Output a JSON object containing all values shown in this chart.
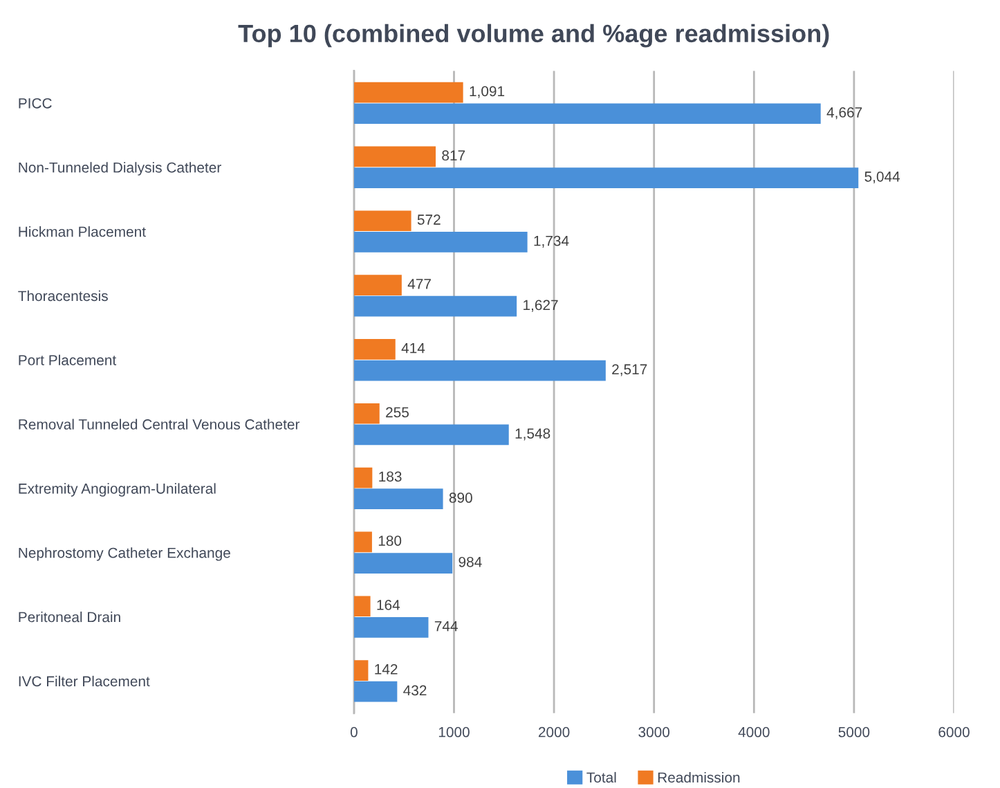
{
  "chart_data": {
    "type": "bar",
    "orientation": "horizontal",
    "title": "Top 10 (combined volume and %age readmission)",
    "categories": [
      "PICC",
      "Non-Tunneled Dialysis Catheter",
      "Hickman Placement",
      "Thoracentesis",
      "Port Placement",
      "Removal Tunneled Central Venous Catheter",
      "Extremity Angiogram-Unilateral",
      "Nephrostomy Catheter Exchange",
      "Peritoneal Drain",
      "IVC Filter Placement"
    ],
    "series": [
      {
        "name": "Total",
        "color": "#4a90d9",
        "values": [
          4667,
          5044,
          1734,
          1627,
          2517,
          1548,
          890,
          984,
          744,
          432
        ],
        "value_labels": [
          "4,667",
          "5,044",
          "1,734",
          "1,627",
          "2,517",
          "1,548",
          "890",
          "984",
          "744",
          "432"
        ]
      },
      {
        "name": "Readmission",
        "color": "#f07a22",
        "values": [
          1091,
          817,
          572,
          477,
          414,
          255,
          183,
          180,
          164,
          142
        ],
        "value_labels": [
          "1,091",
          "817",
          "572",
          "477",
          "414",
          "255",
          "183",
          "180",
          "164",
          "142"
        ]
      }
    ],
    "xlim": [
      0,
      6000
    ],
    "xticks": [
      0,
      1000,
      2000,
      3000,
      4000,
      5000,
      6000
    ],
    "grid": "x",
    "legend": "bottom"
  }
}
